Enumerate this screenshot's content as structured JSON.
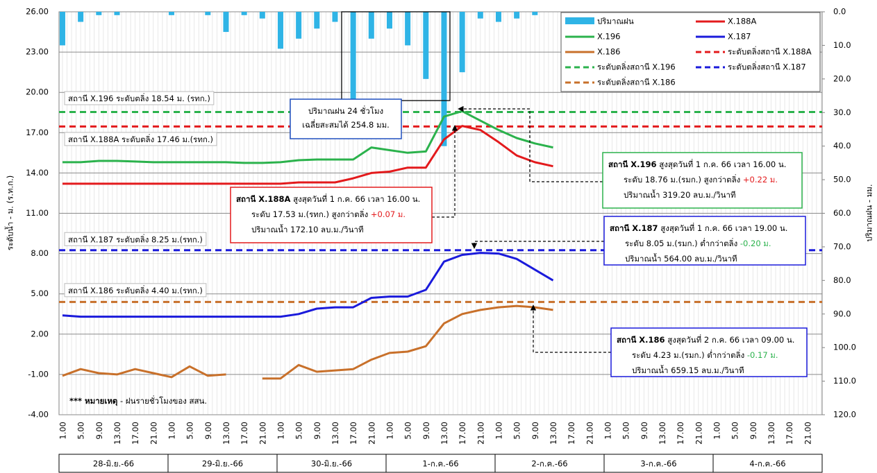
{
  "chart_data": {
    "type": "line",
    "y_label": "ระดับน้ำ - ม. (ร.ท.ก.)",
    "y2_label": "ปริมาณฝน - มม.",
    "ylim": [
      -4,
      26
    ],
    "yticks": [
      {
        "value": -4,
        "label": "-4.00"
      },
      {
        "value": -1,
        "label": "-1.00"
      },
      {
        "value": 2,
        "label": "2.00"
      },
      {
        "value": 5,
        "label": "5.00"
      },
      {
        "value": 8,
        "label": "8.00"
      },
      {
        "value": 11,
        "label": "11.00"
      },
      {
        "value": 14,
        "label": "14.00"
      },
      {
        "value": 17,
        "label": "17.00"
      },
      {
        "value": 20,
        "label": "20.00"
      },
      {
        "value": 23,
        "label": "23.00"
      },
      {
        "value": 26,
        "label": "26.00"
      }
    ],
    "y2lim": [
      0,
      120
    ],
    "y2_inverted": true,
    "y2ticks": [
      {
        "value": 0,
        "label": "0.0"
      },
      {
        "value": 10,
        "label": "10.0"
      },
      {
        "value": 20,
        "label": "20.0"
      },
      {
        "value": 30,
        "label": "30.0"
      },
      {
        "value": 40,
        "label": "40.0"
      },
      {
        "value": 50,
        "label": "50.0"
      },
      {
        "value": 60,
        "label": "60.0"
      },
      {
        "value": 70,
        "label": "70.0"
      },
      {
        "value": 80,
        "label": "80.0"
      },
      {
        "value": 90,
        "label": "90.0"
      },
      {
        "value": 100,
        "label": "100.0"
      },
      {
        "value": 110,
        "label": "110.0"
      },
      {
        "value": 120,
        "label": "120.0"
      }
    ],
    "grid": true,
    "categories": [
      "1.00",
      "5.00",
      "9.00",
      "13.00",
      "17.00",
      "21.00",
      "1.00",
      "5.00",
      "9.00",
      "13.00",
      "17.00",
      "21.00",
      "1.00",
      "5.00",
      "9.00",
      "13.00",
      "17.00",
      "21.00",
      "1.00",
      "5.00",
      "9.00",
      "13.00",
      "17.00",
      "21.00",
      "1.00",
      "5.00",
      "9.00",
      "13.00",
      "17.00",
      "21.00",
      "1.00",
      "5.00",
      "9.00",
      "13.00",
      "17.00",
      "21.00",
      "1.00",
      "5.00",
      "9.00",
      "13.00",
      "17.00",
      "21.00"
    ],
    "days": [
      "28-มิ.ย.-66",
      "29-มิ.ย.-66",
      "30-มิ.ย.-66",
      "1-ก.ค.-66",
      "2-ก.ค.-66",
      "3-ก.ค.-66",
      "4-ก.ค.-66"
    ],
    "series": [
      {
        "name": "ปริมาณฝน",
        "type": "bar",
        "axis": "y2",
        "color": "#2fb4e6",
        "values": [
          10,
          3,
          1,
          1,
          0,
          0,
          1,
          0,
          1,
          6,
          1,
          2,
          11,
          8,
          5,
          3,
          26,
          8,
          5,
          10,
          20,
          40,
          18,
          2,
          3,
          2,
          1,
          0,
          0,
          0,
          0,
          0,
          0,
          0,
          0,
          0,
          0,
          0,
          0,
          0,
          0,
          0
        ]
      },
      {
        "name": "X.188A",
        "color": "#e31a1c",
        "values": [
          13.2,
          13.2,
          13.2,
          13.2,
          13.2,
          13.2,
          13.2,
          13.2,
          13.2,
          13.2,
          13.2,
          13.2,
          13.2,
          13.3,
          13.3,
          13.3,
          13.6,
          14.0,
          14.1,
          14.4,
          14.4,
          16.5,
          17.5,
          17.2,
          16.3,
          15.3,
          14.8,
          14.5,
          null,
          null,
          null,
          null,
          null,
          null,
          null,
          null,
          null,
          null,
          null,
          null,
          null,
          null
        ]
      },
      {
        "name": "X.196",
        "color": "#2bb24c",
        "values": [
          14.8,
          14.8,
          14.9,
          14.9,
          14.85,
          14.8,
          14.8,
          14.8,
          14.8,
          14.8,
          14.75,
          14.75,
          14.8,
          14.95,
          15.0,
          15.0,
          15.0,
          15.9,
          15.7,
          15.5,
          15.6,
          18.2,
          18.6,
          17.9,
          17.2,
          16.6,
          16.2,
          15.9,
          null,
          null,
          null,
          null,
          null,
          null,
          null,
          null,
          null,
          null,
          null,
          null,
          null,
          null
        ]
      },
      {
        "name": "X.187",
        "color": "#1a1adb",
        "values": [
          3.4,
          3.3,
          3.3,
          3.3,
          3.3,
          3.3,
          3.3,
          3.3,
          3.3,
          3.3,
          3.3,
          3.3,
          3.3,
          3.5,
          3.9,
          4.0,
          4.0,
          4.7,
          4.8,
          4.8,
          5.3,
          7.4,
          7.9,
          8.05,
          8.0,
          7.6,
          6.8,
          6.0,
          null,
          null,
          null,
          null,
          null,
          null,
          null,
          null,
          null,
          null,
          null,
          null,
          null,
          null
        ]
      },
      {
        "name": "X.186",
        "color": "#c8702a",
        "values": [
          -1.1,
          -0.6,
          -0.9,
          -1.0,
          -0.6,
          -0.9,
          -1.2,
          -0.4,
          -1.1,
          -1.0,
          null,
          -1.3,
          -1.3,
          -0.3,
          -0.8,
          -0.7,
          -0.6,
          0.1,
          0.6,
          0.7,
          1.1,
          2.8,
          3.5,
          3.8,
          4.0,
          4.1,
          4.0,
          3.8,
          null,
          null,
          null,
          null,
          null,
          null,
          null,
          null,
          null,
          null,
          null,
          null,
          null,
          null
        ]
      }
    ],
    "thresholds": [
      {
        "name": "ระดับตลิ่งสถานี X.188A",
        "color": "#e31a1c",
        "value": 17.46,
        "label": "สถานี X.188A ระดับตลิ่ง  17.46 ม.(รทก.)"
      },
      {
        "name": "ระดับตลิ่งสถานี X.196",
        "color": "#2bb24c",
        "value": 18.54,
        "label": "สถานี X.196 ระดับตลิ่ง  18.54 ม. (รทก.)"
      },
      {
        "name": "ระดับตลิ่งสถานี X.187",
        "color": "#1a1adb",
        "value": 8.25,
        "label": "สถานี X.187 ระดับตลิ่ง  8.25 ม.(รทก.)"
      },
      {
        "name": "ระดับตลิ่งสถานี X.186",
        "color": "#c8702a",
        "value": 4.4,
        "label": "สถานี X.186 ระดับตลิ่ง  4.40 ม.(รทก.)"
      }
    ],
    "annotations": [
      {
        "lines": [
          [
            "ปริมาณฝน 24 ชั่วโมง"
          ],
          [
            "เฉลี่ยสะสมได้ 254.8 มม."
          ]
        ]
      },
      {
        "lines": [
          [
            "สถานี X.196",
            " สูงสุดวันที่ 1 ก.ค. 66 เวลา 16.00 น."
          ],
          [
            "ระดับ 18.76 ม.(รมก.) สูงกว่าตลิ่ง ",
            "+0.22 ม."
          ],
          [
            "ปริมาณน้ำ 319.20 ลบ.ม./วินาที"
          ]
        ]
      },
      {
        "lines": [
          [
            "สถานี X.188A",
            " สูงสุดวันที่ 1 ก.ค. 66 เวลา 16.00 น."
          ],
          [
            "ระดับ 17.53 ม.(รทก.)  สูงกว่าตลิ่ง ",
            "+0.07 ม."
          ],
          [
            "ปริมาณน้ำ 172.10 ลบ.ม./วินาที"
          ]
        ]
      },
      {
        "lines": [
          [
            "สถานี X.187",
            " สูงสุดวันที่ 1 ก.ค. 66 เวลา 19.00 น."
          ],
          [
            "ระดับ 8.05 ม.(รมก.) ต่ำกว่าตลิ่ง ",
            "-0.20 ม."
          ],
          [
            "ปริมาณน้ำ 564.00 ลบ.ม./วินาที"
          ]
        ]
      },
      {
        "lines": [
          [
            "สถานี X.186",
            " สูงสุดวันที่ 2 ก.ค. 66 เวลา 09.00 น."
          ],
          [
            "ระดับ 4.23 ม.(รมก.) ต่ำกว่าตลิ่ง ",
            "-0.17 ม."
          ],
          [
            "ปริมาณน้ำ 659.15 ลบ.ม./วินาที"
          ]
        ]
      },
      {
        "lines": [
          [
            "*** หมายเหตุ",
            "  - ฝนรายชั่วโมงของ สสน."
          ]
        ]
      }
    ]
  }
}
